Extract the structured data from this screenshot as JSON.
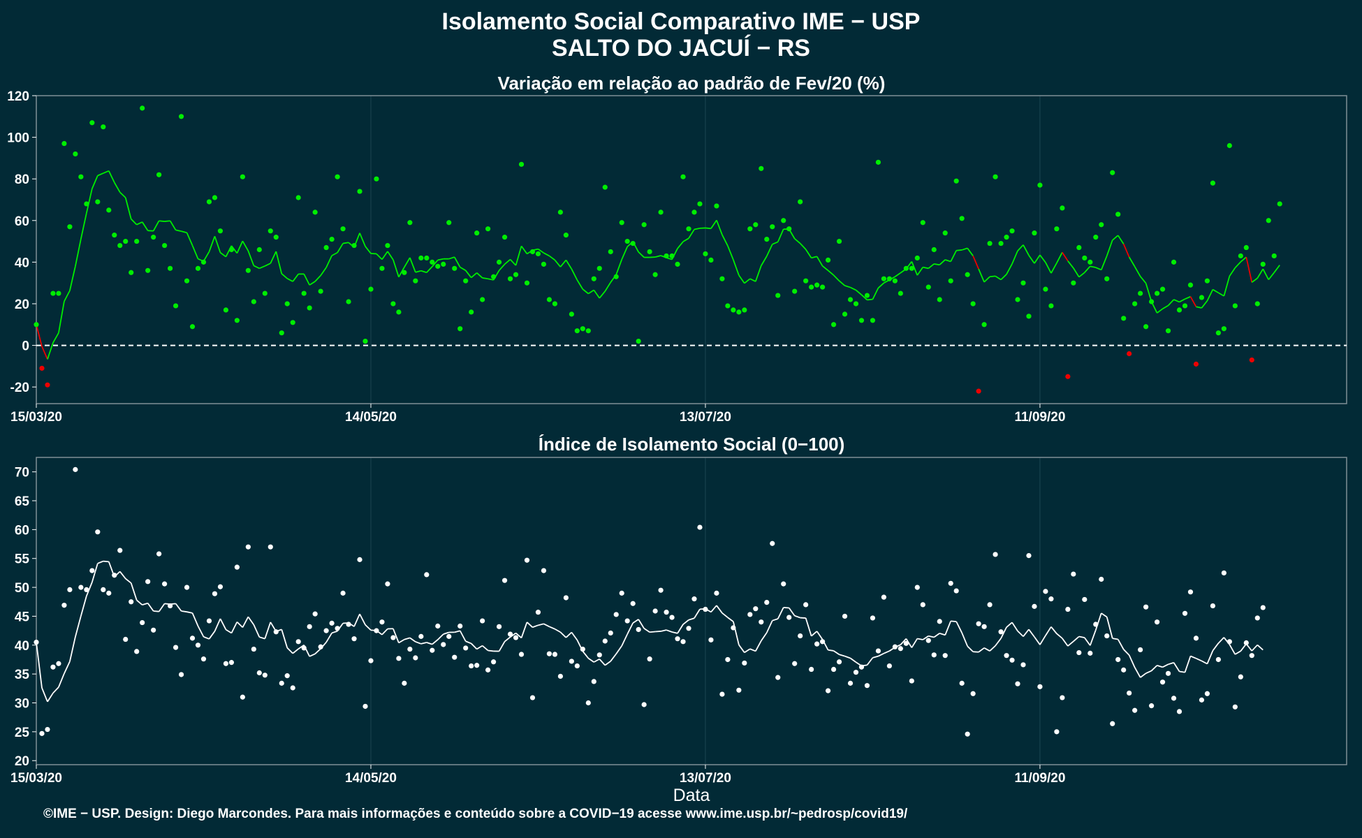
{
  "header": {
    "title": "Isolamento Social Comparativo IME − USP",
    "subtitle": "SALTO DO JACUÍ − RS"
  },
  "footer": "©IME − USP. Design: Diego Marcondes. Para mais informações e conteúdo sobre a COVID−19 acesse www.ime.usp.br/~pedrosp/covid19/",
  "colors": {
    "background": "#022a36",
    "positive": "#00ee00",
    "negative": "#ee0000",
    "index": "#ffffff",
    "grid": "#1c4652"
  },
  "chart_data": [
    {
      "type": "scatter",
      "title": "Variação em relação ao padrão de Fev/20 (%)",
      "xlabel": "",
      "ylabel": "",
      "x_start": "2020-03-15",
      "x_ticks": [
        "15/03/20",
        "14/05/20",
        "13/07/20",
        "11/09/20"
      ],
      "xlim": [
        "2020-03-15",
        "2020-11-05"
      ],
      "ylim": [
        -28,
        120
      ],
      "y_ticks": [
        -20,
        0,
        20,
        40,
        60,
        80,
        100,
        120
      ],
      "reference_line": 0,
      "grid": true,
      "series": [
        {
          "values": [
            10,
            -11,
            -19,
            25,
            25,
            97,
            57,
            92,
            81,
            68,
            107,
            69,
            105,
            65,
            53,
            48,
            50,
            35,
            50,
            114,
            36,
            52,
            82,
            48,
            37,
            19,
            110,
            31,
            9,
            37,
            40,
            69,
            71,
            55,
            17,
            46,
            12,
            81,
            36,
            21,
            46,
            25,
            55,
            52,
            6,
            20,
            11,
            71,
            25,
            18,
            64,
            26,
            47,
            51,
            81,
            56,
            21,
            48,
            74,
            2,
            27,
            80,
            37,
            48,
            20,
            16,
            35,
            59,
            31,
            42,
            42,
            40,
            38,
            39,
            59,
            37,
            8,
            31,
            16,
            54,
            22,
            56,
            33,
            40,
            52,
            32,
            34,
            87,
            30,
            45,
            44,
            39,
            22,
            20,
            64,
            53,
            15,
            7,
            8,
            7,
            32,
            37,
            76,
            45,
            33,
            59,
            50,
            49,
            2,
            58,
            45,
            34,
            64,
            43,
            43,
            39,
            81,
            56,
            64,
            68,
            44,
            41,
            67,
            32,
            19,
            17,
            16,
            17,
            56,
            58,
            85,
            51,
            57,
            24,
            60,
            56,
            26,
            69,
            31,
            28,
            29,
            28,
            41,
            10,
            50,
            15,
            22,
            20,
            12,
            24,
            12,
            88,
            32,
            32,
            31,
            25,
            37,
            37,
            42,
            59,
            28,
            46,
            22,
            54,
            31,
            79,
            61,
            34,
            20,
            -22,
            10,
            49,
            81,
            49,
            52,
            55,
            22,
            30,
            14,
            54,
            77,
            27,
            19,
            56,
            66,
            -15,
            30,
            47,
            42,
            40,
            52,
            58,
            32,
            83,
            63,
            13,
            -4,
            20,
            25,
            9,
            21,
            25,
            27,
            7,
            40,
            17,
            19,
            29,
            -9,
            23,
            31,
            78,
            6,
            8,
            96,
            19,
            43,
            47,
            -7,
            20,
            39,
            60,
            43,
            68
          ]
        }
      ]
    },
    {
      "type": "scatter",
      "title": "Índice de Isolamento Social (0−100)",
      "xlabel": "Data",
      "ylabel": "",
      "x_start": "2020-03-15",
      "x_ticks": [
        "15/03/20",
        "14/05/20",
        "13/07/20",
        "11/09/20"
      ],
      "xlim": [
        "2020-03-15",
        "2020-11-05"
      ],
      "ylim": [
        19.3,
        72.5
      ],
      "y_ticks": [
        20,
        25,
        30,
        35,
        40,
        45,
        50,
        55,
        60,
        65,
        70
      ],
      "grid": true,
      "series": [
        {
          "values": [
            40.5,
            24.7,
            25.4,
            36.2,
            36.8,
            46.9,
            49.6,
            70.4,
            50,
            49.6,
            52.9,
            59.6,
            49.6,
            49,
            52.1,
            56.4,
            41,
            47.5,
            38.9,
            43.9,
            51,
            42.6,
            55.8,
            50.6,
            46.8,
            39.6,
            34.9,
            50,
            41.2,
            40,
            37.6,
            44.2,
            48.9,
            50.1,
            36.8,
            37,
            53.5,
            31,
            57,
            39.3,
            35.2,
            34.8,
            57,
            42.3,
            33.4,
            34.7,
            32.6,
            40.6,
            39.5,
            43.2,
            45.4,
            39.7,
            42.5,
            43.8,
            42.9,
            49,
            43.6,
            41.1,
            54.8,
            29.4,
            37.3,
            42.5,
            44,
            50.6,
            41.3,
            37.7,
            33.4,
            39.3,
            37.8,
            41.5,
            52.2,
            39.1,
            43.3,
            40.1,
            41.5,
            37.9,
            43.3,
            39.5,
            36.4,
            36.5,
            44.2,
            35.7,
            37.1,
            43.2,
            51.2,
            41.9,
            41.3,
            38.4,
            54.7,
            30.9,
            45.7,
            52.9,
            38.5,
            38.4,
            34.6,
            48.2,
            37.2,
            36.4,
            39.3,
            30,
            33.7,
            38.3,
            40.7,
            42.1,
            45.3,
            49,
            44.2,
            47.2,
            42.7,
            29.7,
            37.6,
            45.9,
            49.5,
            45.7,
            44.8,
            41.1,
            40.6,
            42.9,
            48,
            60.4,
            46.2,
            40.9,
            49,
            31.5,
            37.5,
            43,
            32.2,
            36.9,
            45.3,
            46.3,
            44,
            47.4,
            57.6,
            34.4,
            50.6,
            44.8,
            36.8,
            41.6,
            47,
            35.8,
            40.2,
            40.6,
            32.1,
            35.8,
            37.1,
            45,
            33.4,
            35.3,
            36.2,
            33,
            44.7,
            39,
            48.3,
            36.4,
            39.7,
            39.4,
            40.3,
            33.8,
            50,
            47,
            40.8,
            38.3,
            44.1,
            38.2,
            50.7,
            49.4,
            33.4,
            24.6,
            31.6,
            43.7,
            43.2,
            47,
            55.7,
            42.3,
            38.2,
            37.4,
            33.3,
            36.6,
            55.5,
            46.7,
            32.8,
            49.3,
            48,
            25,
            30.9,
            46.2,
            52.3,
            38.7,
            47.9,
            38.6,
            43.6,
            51.4,
            41.6,
            26.4,
            37.5,
            35.7,
            31.7,
            28.7,
            39.2,
            46.6,
            29.5,
            44,
            33.6,
            35.1,
            30.8,
            28.5,
            45.5,
            49.2,
            41.2,
            30.5,
            31.6,
            46.8,
            37.5,
            52.5,
            40.6,
            29.3,
            34.5,
            40.4,
            38.2,
            44.7,
            46.5
          ]
        }
      ]
    }
  ]
}
